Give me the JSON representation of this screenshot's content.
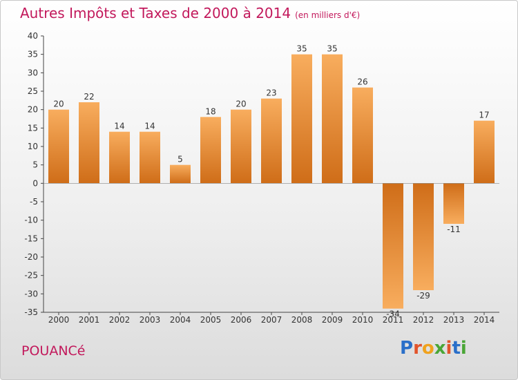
{
  "header": {
    "title": "Autres Impôts et Taxes de 2000 à 2014",
    "subtitle": "(en milliers d'€)"
  },
  "place_name": "POUANCé",
  "logo": {
    "text": "Proxiti"
  },
  "colors": {
    "title": "#c2185b",
    "bar_light": "#f8ad5e",
    "bar_dark": "#cf6d18",
    "axis": "#333333"
  },
  "chart_data": {
    "type": "bar",
    "title": "Autres Impôts et Taxes de 2000 à 2014",
    "subtitle": "(en milliers d'€)",
    "xlabel": "",
    "ylabel": "",
    "categories": [
      "2000",
      "2001",
      "2002",
      "2003",
      "2004",
      "2005",
      "2006",
      "2007",
      "2008",
      "2009",
      "2010",
      "2011",
      "2012",
      "2013",
      "2014"
    ],
    "values": [
      20,
      22,
      14,
      14,
      5,
      18,
      20,
      23,
      35,
      35,
      26,
      -34,
      -29,
      -11,
      17
    ],
    "data_labels": [
      "20",
      "22",
      "14",
      "14",
      "5",
      "18",
      "20",
      "23",
      "35",
      "35",
      "26",
      "-34",
      "-29",
      "-11",
      "17"
    ],
    "ylim": [
      -35,
      40
    ],
    "yticks": [
      40,
      35,
      30,
      25,
      20,
      15,
      10,
      5,
      0,
      -5,
      -10,
      -15,
      -20,
      -25,
      -30,
      -35
    ],
    "grid": false,
    "legend": "none"
  }
}
